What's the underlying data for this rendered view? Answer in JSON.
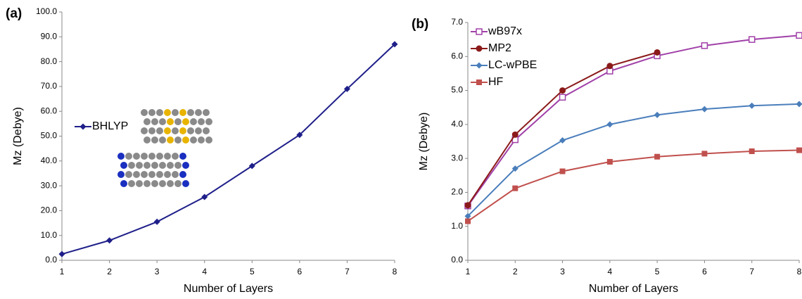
{
  "chart_data": [
    {
      "type": "line",
      "panel_label": "(a)",
      "x_label": "Number of Layers",
      "y_label": "Mz (Debye)",
      "x": [
        1,
        2,
        3,
        4,
        5,
        6,
        7,
        8
      ],
      "xlim": [
        1,
        8
      ],
      "xticks": [
        1,
        2,
        3,
        4,
        5,
        6,
        7,
        8
      ],
      "ylim": [
        0,
        100
      ],
      "yticks": [
        {
          "value": 0,
          "label": "0.0"
        },
        {
          "value": 10,
          "label": "10.0"
        },
        {
          "value": 20,
          "label": "20.0"
        },
        {
          "value": 30,
          "label": "30.0"
        },
        {
          "value": 40,
          "label": "40.0"
        },
        {
          "value": 50,
          "label": "50.0"
        },
        {
          "value": 60,
          "label": "60.0"
        },
        {
          "value": 70,
          "label": "70.0"
        },
        {
          "value": 80,
          "label": "80.0"
        },
        {
          "value": 90,
          "label": "90.0"
        },
        {
          "value": 100,
          "label": "100.0"
        }
      ],
      "legend": "middle left",
      "series": [
        {
          "name": "BHLYP",
          "color": "#1f1f8a",
          "marker": "diamond",
          "values": [
            2.5,
            8,
            15.5,
            25.5,
            38,
            50.5,
            69,
            87
          ]
        }
      ]
    },
    {
      "type": "line",
      "panel_label": "(b)",
      "x_label": "Number of Layers",
      "y_label": "Mz (Debye)",
      "x": [
        1,
        2,
        3,
        4,
        5,
        6,
        7,
        8
      ],
      "xlim": [
        1,
        8
      ],
      "xticks": [
        1,
        2,
        3,
        4,
        5,
        6,
        7,
        8
      ],
      "ylim": [
        0,
        7
      ],
      "yticks": [
        {
          "value": 0,
          "label": "0.0"
        },
        {
          "value": 1,
          "label": "1.0"
        },
        {
          "value": 2,
          "label": "2.0"
        },
        {
          "value": 3,
          "label": "3.0"
        },
        {
          "value": 4,
          "label": "4.0"
        },
        {
          "value": 5,
          "label": "5.0"
        },
        {
          "value": 6,
          "label": "6.0"
        },
        {
          "value": 7,
          "label": "7.0"
        }
      ],
      "legend": "upper left",
      "series": [
        {
          "name": "wB97x",
          "color": "#a040a8",
          "marker": "square-open",
          "values": [
            1.6,
            3.55,
            4.8,
            5.57,
            6.02,
            6.32,
            6.5,
            6.62
          ]
        },
        {
          "name": "MP2",
          "color": "#8b1a1a",
          "marker": "circle",
          "values": [
            1.62,
            3.7,
            5.0,
            5.72,
            6.12,
            null,
            null,
            null
          ]
        },
        {
          "name": "LC-wPBE",
          "color": "#4a7ebb",
          "marker": "diamond",
          "values": [
            1.3,
            2.7,
            3.53,
            4.0,
            4.28,
            4.45,
            4.55,
            4.6
          ]
        },
        {
          "name": "HF",
          "color": "#c0504d",
          "marker": "square",
          "values": [
            1.15,
            2.12,
            2.62,
            2.9,
            3.05,
            3.14,
            3.21,
            3.24
          ]
        }
      ]
    }
  ]
}
